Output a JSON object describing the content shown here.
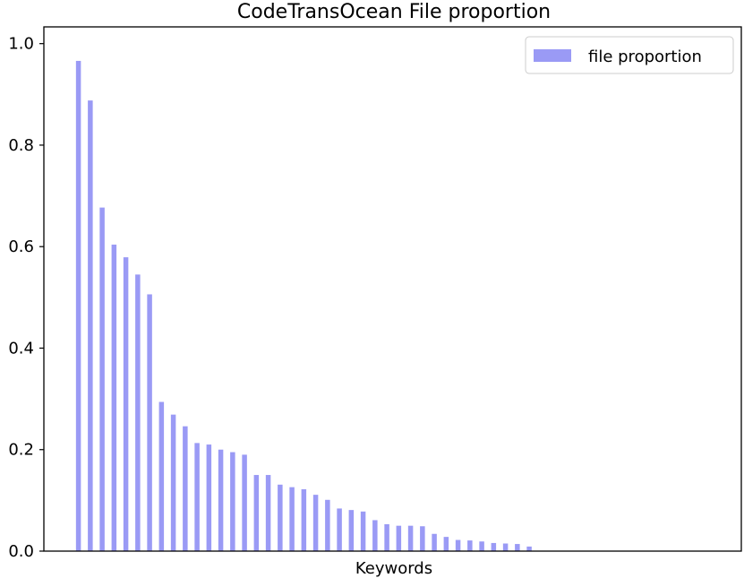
{
  "chart_data": {
    "type": "bar",
    "title": "CodeTransOcean File proportion",
    "xlabel": "Keywords",
    "ylabel": "",
    "ylim": [
      0,
      1.0
    ],
    "yticks": [
      "0.0",
      "0.2",
      "0.4",
      "0.6",
      "0.8",
      "1.0"
    ],
    "xticks": [],
    "grid": false,
    "legend_position": "top-right",
    "series": [
      {
        "name": "file proportion",
        "color": "#9a9af5",
        "values": [
          0.966,
          0.888,
          0.677,
          0.604,
          0.579,
          0.545,
          0.506,
          0.294,
          0.269,
          0.246,
          0.213,
          0.21,
          0.2,
          0.195,
          0.19,
          0.15,
          0.15,
          0.131,
          0.126,
          0.122,
          0.111,
          0.101,
          0.084,
          0.081,
          0.078,
          0.061,
          0.053,
          0.05,
          0.05,
          0.049,
          0.034,
          0.028,
          0.022,
          0.021,
          0.019,
          0.016,
          0.015,
          0.014,
          0.009
        ]
      }
    ]
  }
}
